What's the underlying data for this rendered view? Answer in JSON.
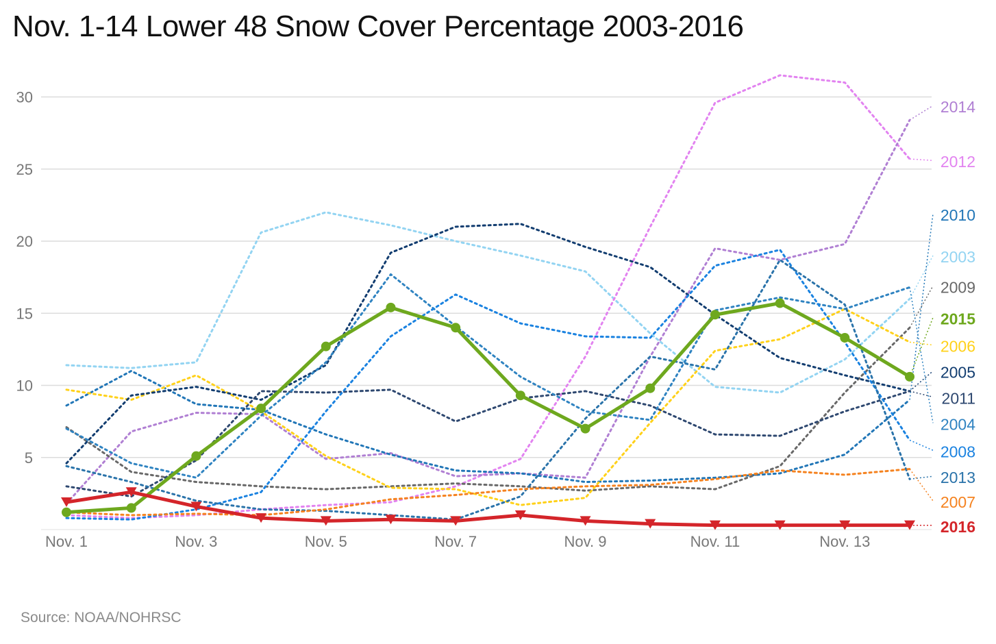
{
  "chart_data": {
    "type": "line",
    "title": "Nov. 1-14 Lower 48 Snow Cover Percentage 2003-2016",
    "source": "Source: NOAA/NOHRSC",
    "x": [
      1,
      2,
      3,
      4,
      5,
      6,
      7,
      8,
      9,
      10,
      11,
      12,
      13,
      14
    ],
    "xtick_labels": [
      "Nov. 1",
      "Nov. 3",
      "Nov. 5",
      "Nov. 7",
      "Nov. 9",
      "Nov. 11",
      "Nov. 13"
    ],
    "xtick_values": [
      1,
      3,
      5,
      7,
      9,
      11,
      13
    ],
    "yticks": [
      5,
      10,
      15,
      20,
      25,
      30
    ],
    "ylim": [
      0,
      32.5
    ],
    "grid": true,
    "legend": "direct labels at right end of each line",
    "series": [
      {
        "name": "2003",
        "color": "#93d4f2",
        "style": "dotted",
        "label_y": 18.9,
        "values": [
          11.4,
          11.2,
          11.6,
          20.6,
          22.0,
          21.1,
          20.0,
          19.0,
          17.9,
          13.6,
          9.9,
          9.5,
          11.8,
          16.0
        ]
      },
      {
        "name": "2012",
        "color": "#e283f0",
        "style": "dotted",
        "label_y": 25.5,
        "values": [
          1.0,
          0.8,
          1.0,
          1.4,
          1.7,
          1.9,
          3.0,
          4.9,
          12.0,
          21.0,
          29.6,
          31.5,
          31.0,
          25.7
        ]
      },
      {
        "name": "2014",
        "color": "#b07fd3",
        "style": "dotted",
        "label_y": 29.3,
        "values": [
          1.8,
          6.8,
          8.1,
          8.0,
          4.9,
          5.3,
          3.7,
          3.9,
          3.6,
          12.0,
          19.5,
          18.7,
          19.8,
          28.4
        ]
      },
      {
        "name": "2010",
        "color": "#2176b7",
        "style": "dotted",
        "label_y": 21.8,
        "values": [
          8.6,
          11.0,
          8.7,
          8.3,
          6.6,
          5.2,
          4.1,
          3.9,
          3.3,
          3.4,
          3.6,
          3.9,
          5.2,
          9.0
        ]
      },
      {
        "name": "2009",
        "color": "#686868",
        "style": "dotted",
        "label_y": 16.8,
        "values": [
          7.1,
          4.0,
          3.3,
          3.0,
          2.8,
          3.0,
          3.2,
          3.0,
          2.7,
          3.0,
          2.8,
          4.4,
          9.5,
          14.0
        ]
      },
      {
        "name": "2015",
        "color": "#6ea81e",
        "style": "bold",
        "marker": "circle",
        "label_y": 14.6,
        "values": [
          1.2,
          1.5,
          5.1,
          8.4,
          12.7,
          15.4,
          14.0,
          9.3,
          7.0,
          9.8,
          14.9,
          15.7,
          13.3,
          10.6
        ]
      },
      {
        "name": "2006",
        "color": "#ffd11a",
        "style": "dotted",
        "label_y": 12.7,
        "values": [
          9.7,
          9.0,
          10.7,
          8.2,
          5.1,
          2.9,
          2.8,
          1.7,
          2.2,
          7.4,
          12.4,
          13.2,
          15.3,
          13.0
        ]
      },
      {
        "name": "2005",
        "color": "#123d70",
        "style": "dotted",
        "label_y": 10.9,
        "values": [
          4.6,
          9.3,
          9.9,
          9.0,
          11.4,
          19.2,
          21.0,
          21.2,
          19.6,
          18.2,
          14.9,
          11.9,
          10.7,
          9.6
        ]
      },
      {
        "name": "2011",
        "color": "#2e4870",
        "style": "dotted",
        "label_y": 9.1,
        "values": [
          3.0,
          2.3,
          4.8,
          9.6,
          9.5,
          9.7,
          7.5,
          9.1,
          9.6,
          8.6,
          6.6,
          6.5,
          8.2,
          9.6
        ]
      },
      {
        "name": "2004",
        "color": "#2f83c1",
        "style": "dotted",
        "label_y": 7.3,
        "values": [
          7.0,
          4.6,
          3.6,
          7.9,
          11.6,
          17.7,
          14.1,
          10.6,
          8.2,
          7.6,
          15.2,
          16.1,
          15.3,
          16.8
        ]
      },
      {
        "name": "2008",
        "color": "#1a82e0",
        "style": "dotted",
        "label_y": 5.4,
        "values": [
          0.8,
          0.7,
          1.4,
          2.6,
          8.2,
          13.4,
          16.3,
          14.3,
          13.4,
          13.3,
          18.3,
          19.4,
          13.0,
          6.2
        ]
      },
      {
        "name": "2013",
        "color": "#2a73aa",
        "style": "dotted",
        "label_y": 3.6,
        "values": [
          4.4,
          3.3,
          2.0,
          1.4,
          1.3,
          1.0,
          0.7,
          2.3,
          7.7,
          12.0,
          11.1,
          18.7,
          15.6,
          3.5
        ]
      },
      {
        "name": "2007",
        "color": "#f5821f",
        "style": "dotted",
        "label_y": 1.9,
        "values": [
          1.2,
          1.0,
          1.1,
          1.0,
          1.4,
          2.1,
          2.4,
          2.8,
          3.0,
          3.1,
          3.5,
          4.1,
          3.8,
          4.2
        ]
      },
      {
        "name": "2016",
        "color": "#d4252a",
        "style": "bold",
        "marker": "triangle-down",
        "label_y": 0.2,
        "values": [
          1.9,
          2.6,
          1.6,
          0.8,
          0.6,
          0.7,
          0.6,
          1.0,
          0.6,
          0.4,
          0.3,
          0.3,
          0.3,
          0.3
        ]
      }
    ]
  }
}
